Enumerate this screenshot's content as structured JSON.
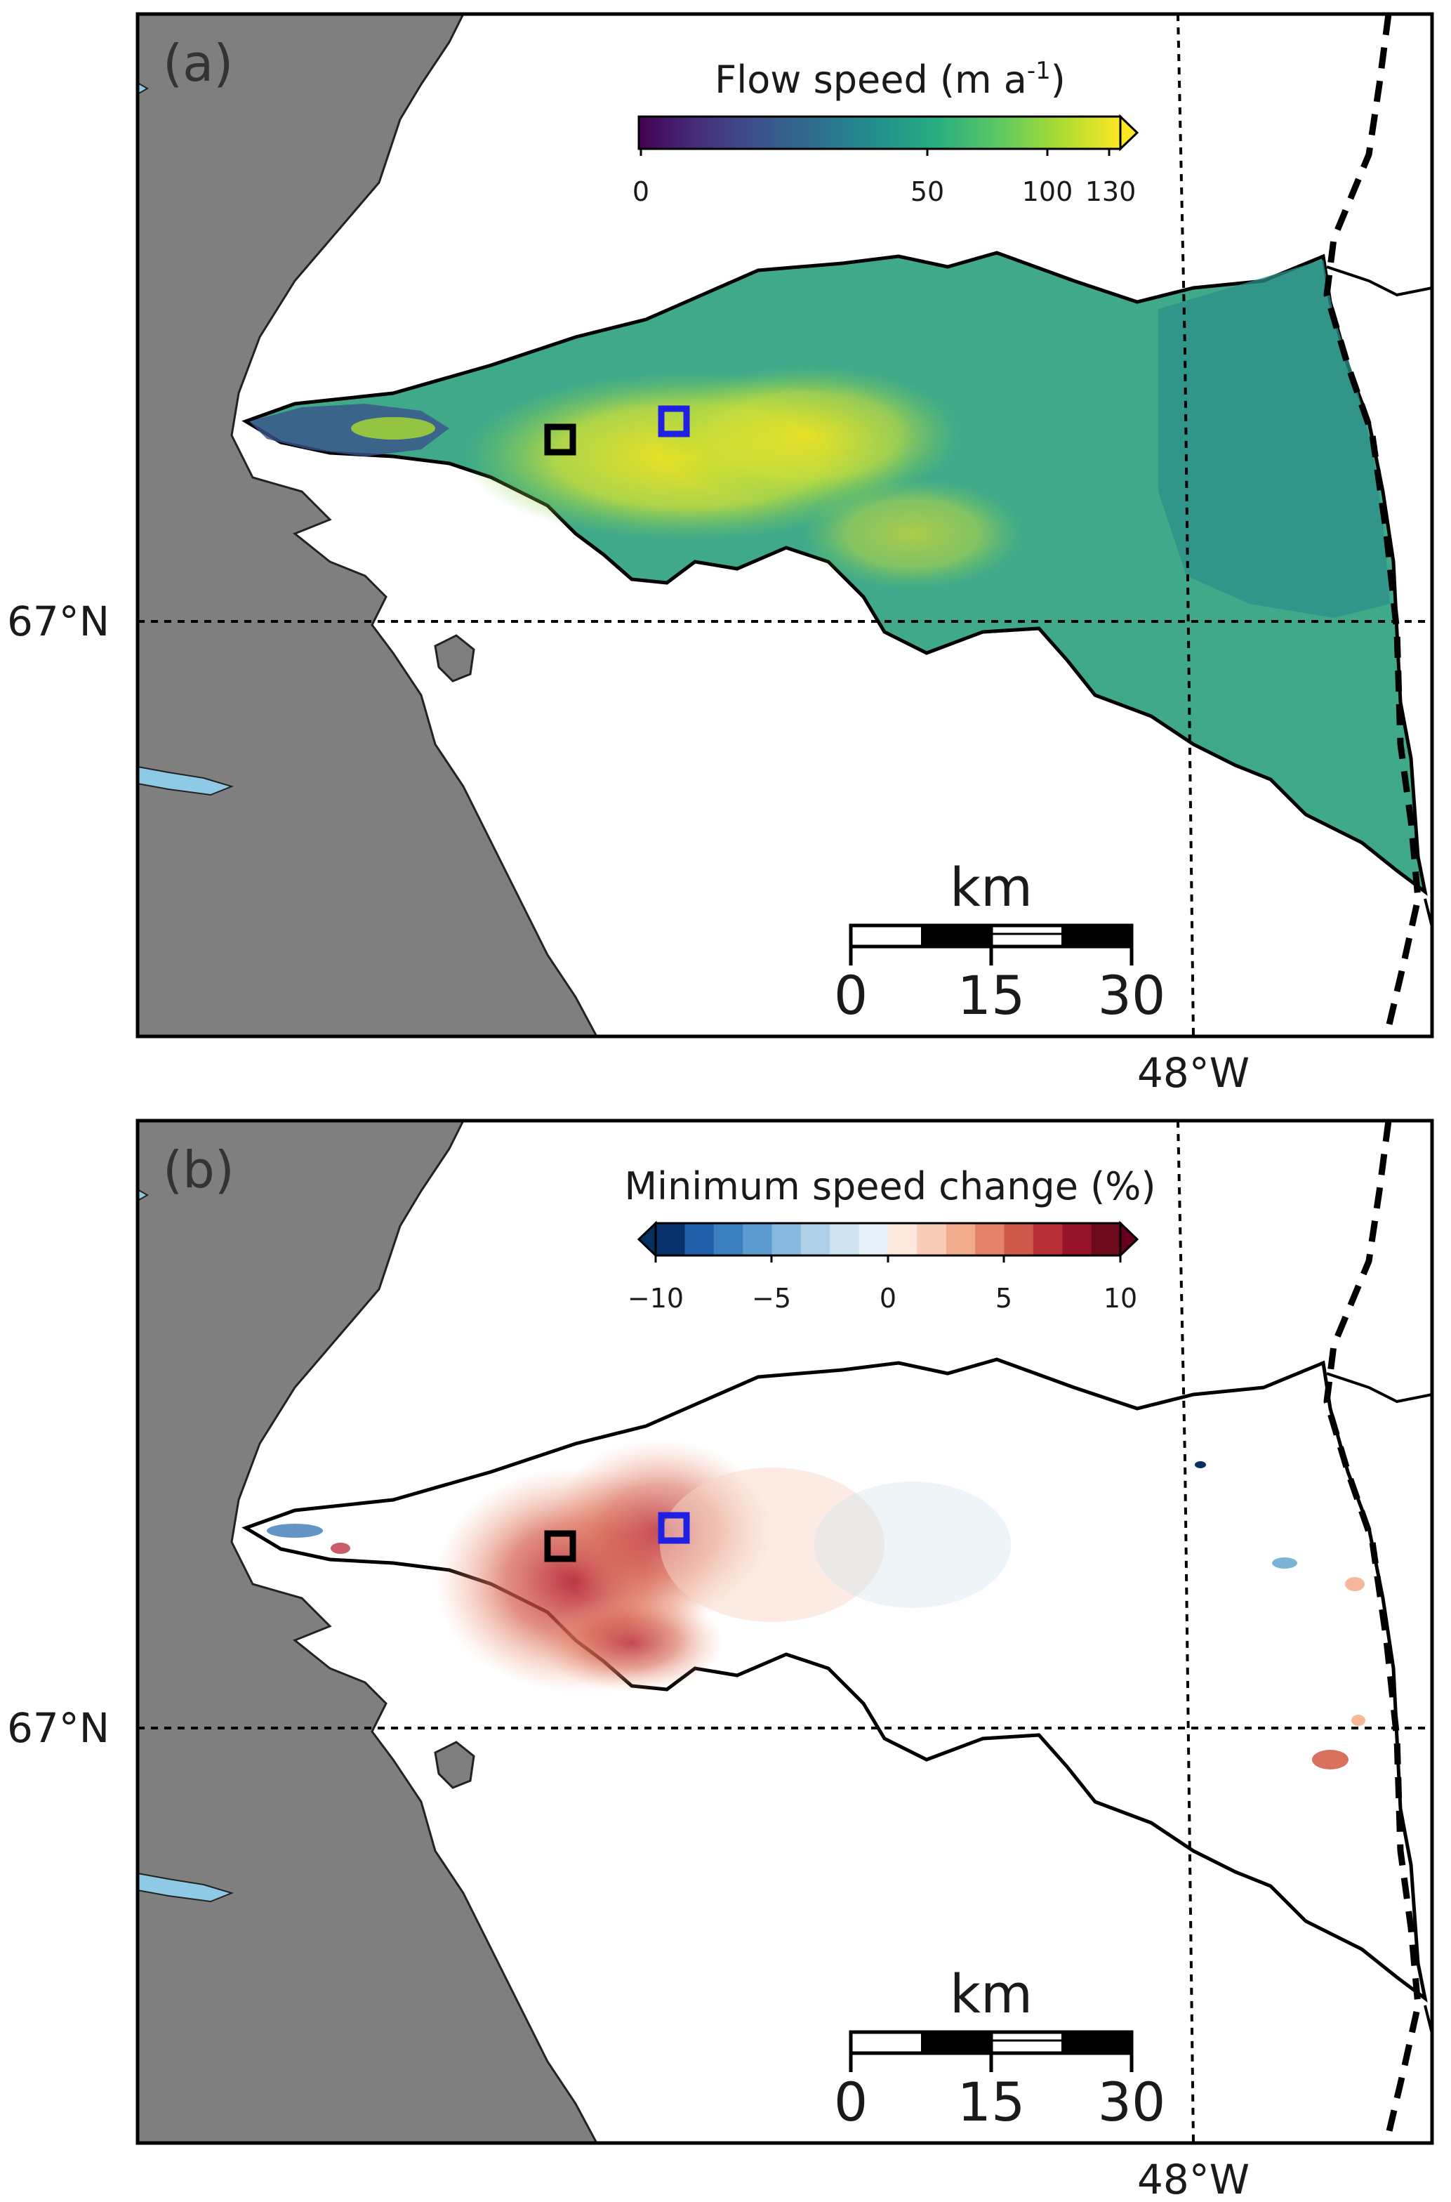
{
  "panels": [
    {
      "label": "(a)",
      "colorbar": {
        "title": "Flow speed (m a",
        "title_sup": "-1",
        "title_end": ")",
        "ticks": [
          "0",
          "50",
          "100",
          "130"
        ],
        "colormap": "viridis",
        "extend": "max"
      },
      "lat_label": "67°N",
      "lon_label": "48°W",
      "scalebar": {
        "unit": "km",
        "ticks": [
          "0",
          "15",
          "30"
        ]
      },
      "markers": [
        {
          "color": "#000000"
        },
        {
          "color": "#1f1fe6"
        }
      ]
    },
    {
      "label": "(b)",
      "colorbar": {
        "title": "Minimum speed change (%)",
        "ticks": [
          "−10",
          "−5",
          "0",
          "5",
          "10"
        ],
        "colormap": "RdBu_r",
        "extend": "both"
      },
      "lat_label": "67°N",
      "lon_label": "48°W",
      "scalebar": {
        "unit": "km",
        "ticks": [
          "0",
          "15",
          "30"
        ]
      },
      "markers": [
        {
          "color": "#000000"
        },
        {
          "color": "#1f1fe6"
        }
      ]
    }
  ],
  "colors": {
    "land": "#7f7f7f",
    "lake": "#8ecae6",
    "frame": "#000000",
    "ice_outline": "#000000"
  }
}
